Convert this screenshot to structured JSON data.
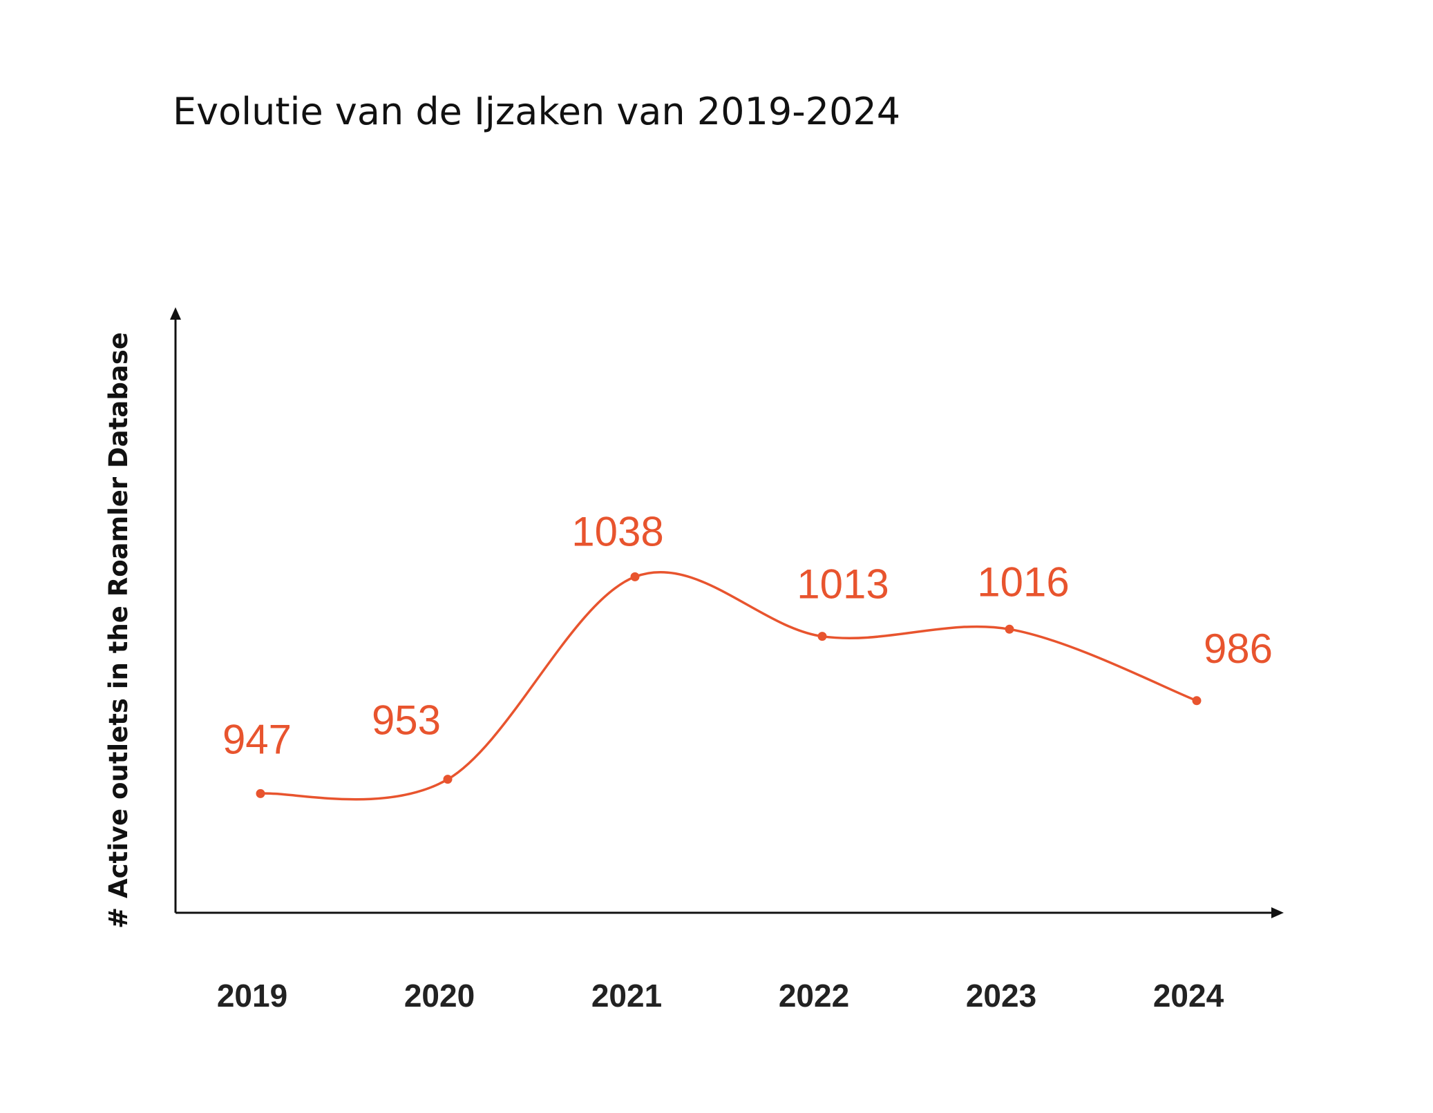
{
  "title": "Evolutie van de Ijzaken van 2019-2024",
  "colors": {
    "series": "#e8542e",
    "axis": "#111111",
    "text": "#111111"
  },
  "chart_data": {
    "type": "line",
    "title": "Evolutie van de Ijzaken van 2019-2024",
    "xlabel": "",
    "ylabel": "# Active outlets in the Roamler Database",
    "categories": [
      "2019",
      "2020",
      "2021",
      "2022",
      "2023",
      "2024"
    ],
    "series": [
      {
        "values": [
          947,
          953,
          1038,
          1013,
          1016,
          986
        ],
        "color": "#e8542e",
        "smooth": true
      }
    ],
    "data_labels": [
      "947",
      "953",
      "1038",
      "1013",
      "1016",
      "986"
    ],
    "ylim": [
      890,
      1110
    ],
    "grid": false,
    "legend": "none",
    "y_ticks_shown": false
  }
}
